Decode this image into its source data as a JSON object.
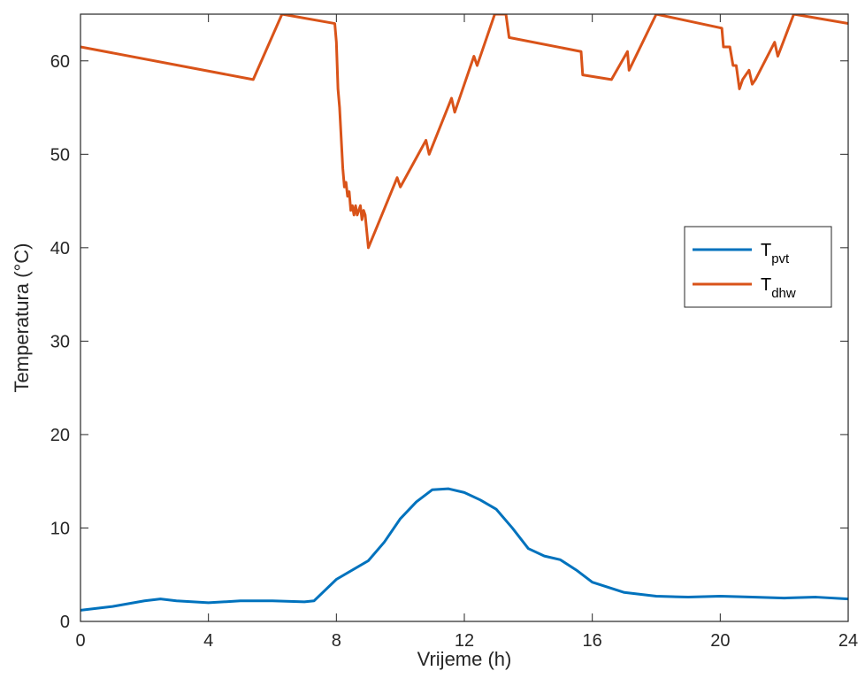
{
  "chart_data": {
    "type": "line",
    "xlabel": "Vrijeme (h)",
    "ylabel": "Temperatura (°C)",
    "xlim": [
      0,
      24
    ],
    "ylim": [
      0,
      65
    ],
    "xticks": [
      0,
      4,
      8,
      12,
      16,
      20,
      24
    ],
    "yticks": [
      0,
      10,
      20,
      30,
      40,
      50,
      60
    ],
    "grid": false,
    "legend_position": "right",
    "series": [
      {
        "key": "pvt",
        "legend_main": "T",
        "legend_sub": "pvt",
        "color": "#0072BD",
        "x": [
          0,
          1,
          2,
          2.5,
          3,
          4,
          5,
          6,
          7,
          7.3,
          8,
          9,
          9.5,
          10,
          10.5,
          11,
          11.5,
          12,
          12.5,
          13,
          13.5,
          14,
          14.5,
          15,
          15.5,
          16,
          17,
          18,
          19,
          20,
          21,
          22,
          23,
          24
        ],
        "y": [
          1.2,
          1.6,
          2.2,
          2.4,
          2.2,
          2.0,
          2.2,
          2.2,
          2.1,
          2.2,
          4.5,
          6.5,
          8.5,
          11.0,
          12.8,
          14.1,
          14.2,
          13.8,
          13.0,
          12.0,
          10.0,
          7.8,
          7.0,
          6.6,
          5.5,
          4.2,
          3.1,
          2.7,
          2.6,
          2.7,
          2.6,
          2.5,
          2.6,
          2.4
        ]
      },
      {
        "key": "dhw",
        "legend_main": "T",
        "legend_sub": "dhw",
        "color": "#D95319",
        "x": [
          0,
          5.4,
          6.3,
          7.95,
          8.0,
          8.05,
          8.1,
          8.2,
          8.25,
          8.3,
          8.35,
          8.4,
          8.45,
          8.5,
          8.55,
          8.6,
          8.65,
          8.7,
          8.75,
          8.8,
          8.85,
          8.9,
          9.0,
          9.9,
          10.0,
          10.8,
          10.9,
          11.6,
          11.7,
          12.3,
          12.4,
          12.95,
          13.3,
          13.4,
          15.65,
          15.7,
          16.6,
          17.1,
          17.15,
          18.0,
          20.05,
          20.1,
          20.3,
          20.4,
          20.5,
          20.6,
          20.7,
          20.9,
          21.0,
          21.1,
          21.7,
          21.8,
          22.3,
          24.0
        ],
        "y": [
          61.5,
          58.0,
          65.0,
          64.0,
          62.0,
          57.0,
          55.0,
          48.5,
          46.5,
          47.0,
          45.5,
          46.0,
          44.0,
          44.5,
          43.5,
          44.5,
          43.5,
          44.0,
          44.5,
          43.0,
          44.0,
          43.5,
          40.0,
          47.5,
          46.5,
          51.5,
          50.0,
          56.0,
          54.5,
          60.5,
          59.5,
          65.0,
          65.0,
          62.5,
          61.0,
          58.5,
          58.0,
          61.0,
          59.0,
          65.0,
          63.5,
          61.5,
          61.5,
          59.5,
          59.5,
          57.0,
          58.0,
          59.0,
          57.5,
          58.0,
          62.0,
          60.5,
          65.0,
          64.0
        ]
      }
    ]
  }
}
